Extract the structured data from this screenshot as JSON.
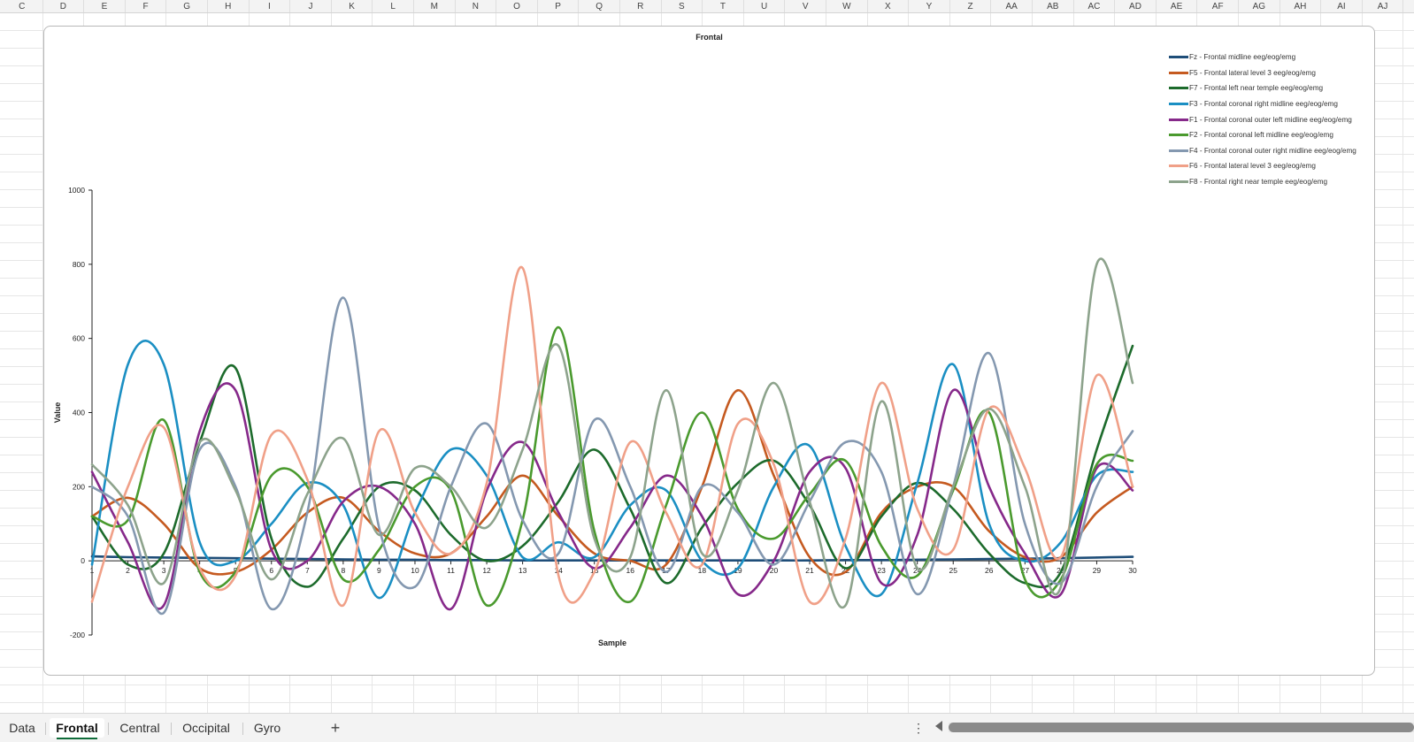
{
  "columns": [
    "C",
    "D",
    "E",
    "F",
    "G",
    "H",
    "I",
    "J",
    "K",
    "L",
    "M",
    "N",
    "O",
    "P",
    "Q",
    "R",
    "S",
    "T",
    "U",
    "V",
    "W",
    "X",
    "Y",
    "Z",
    "AA",
    "AB",
    "AC",
    "AD",
    "AE",
    "AF",
    "AG",
    "AH",
    "AI",
    "AJ"
  ],
  "sheet_tabs": [
    {
      "label": "Data",
      "active": false
    },
    {
      "label": "Frontal",
      "active": true
    },
    {
      "label": "Central",
      "active": false
    },
    {
      "label": "Occipital",
      "active": false
    },
    {
      "label": "Gyro",
      "active": false
    }
  ],
  "add_sheet_label": "+",
  "more_label": "⋮",
  "colors": {
    "sheet_tab_accent": "#0f6c3a"
  },
  "chart_data": {
    "type": "line",
    "title": "Frontal",
    "xlabel": "Sample",
    "ylabel": "Value",
    "ylim": [
      -200,
      1000
    ],
    "yticks": [
      -200,
      0,
      200,
      400,
      600,
      800,
      1000
    ],
    "x": [
      1,
      2,
      3,
      4,
      5,
      6,
      7,
      8,
      9,
      10,
      11,
      12,
      13,
      14,
      15,
      16,
      17,
      18,
      19,
      20,
      21,
      22,
      23,
      24,
      25,
      26,
      27,
      28,
      29,
      30
    ],
    "smooth": true,
    "legend_position": "top-right",
    "series": [
      {
        "name": "Fz - Frontal midline eeg/eog/emg",
        "color": "#1f4e79",
        "values": [
          12,
          10,
          9,
          8,
          7,
          6,
          5,
          4,
          3,
          3,
          2,
          2,
          1,
          1,
          1,
          1,
          1,
          1,
          1,
          1,
          1,
          2,
          2,
          3,
          4,
          5,
          6,
          7,
          9,
          11
        ]
      },
      {
        "name": "F5 - Frontal lateral level 3 eeg/eog/emg",
        "color": "#c55a20",
        "values": [
          120,
          170,
          100,
          -20,
          -30,
          30,
          130,
          170,
          80,
          20,
          20,
          120,
          230,
          120,
          20,
          0,
          -10,
          200,
          460,
          230,
          10,
          -30,
          130,
          200,
          200,
          80,
          10,
          10,
          130,
          200
        ]
      },
      {
        "name": "F7 - Frontal left near temple eeg/eog/emg",
        "color": "#1d6b2c",
        "values": [
          120,
          -10,
          20,
          320,
          520,
          60,
          -70,
          60,
          200,
          190,
          70,
          0,
          40,
          160,
          300,
          140,
          -60,
          90,
          210,
          270,
          150,
          -20,
          120,
          210,
          140,
          20,
          -60,
          -30,
          300,
          580
        ]
      },
      {
        "name": "F3 - Frontal coronal right midline eeg/eog/emg",
        "color": "#1b8fc3",
        "values": [
          -10,
          530,
          530,
          50,
          0,
          100,
          210,
          150,
          -100,
          130,
          300,
          230,
          10,
          50,
          10,
          150,
          190,
          0,
          -20,
          200,
          310,
          40,
          -90,
          210,
          530,
          100,
          0,
          50,
          230,
          240
        ]
      },
      {
        "name": "F1 - Frontal coronal outer left midline eeg/eog/emg",
        "color": "#86298a",
        "values": [
          240,
          50,
          -120,
          350,
          460,
          30,
          0,
          160,
          200,
          100,
          -130,
          190,
          320,
          130,
          -20,
          90,
          230,
          120,
          -90,
          0,
          240,
          250,
          -60,
          70,
          460,
          200,
          20,
          -90,
          250,
          190
        ]
      },
      {
        "name": "F2 - Frontal coronal left midline eeg/eog/emg",
        "color": "#4a9a2e",
        "values": [
          120,
          110,
          380,
          -30,
          -30,
          230,
          200,
          -50,
          30,
          200,
          190,
          -120,
          110,
          630,
          80,
          -110,
          150,
          400,
          140,
          60,
          180,
          270,
          40,
          -40,
          190,
          400,
          -50,
          -50,
          260,
          270
        ]
      },
      {
        "name": "F4 - Frontal coronal outer right midline eeg/eog/emg",
        "color": "#8498b0",
        "values": [
          200,
          120,
          -140,
          300,
          200,
          -130,
          130,
          710,
          90,
          -70,
          200,
          370,
          110,
          20,
          380,
          200,
          -30,
          200,
          130,
          -10,
          160,
          320,
          240,
          -90,
          200,
          560,
          100,
          -60,
          200,
          350
        ]
      },
      {
        "name": "F6 - Frontal lateral level 3 eeg/eog/emg",
        "color": "#f0a088",
        "values": [
          -110,
          200,
          360,
          -20,
          -40,
          340,
          220,
          -120,
          350,
          130,
          20,
          210,
          790,
          -40,
          -30,
          320,
          130,
          -10,
          370,
          260,
          -110,
          60,
          480,
          140,
          30,
          410,
          250,
          10,
          500,
          200
        ]
      },
      {
        "name": "F8 - Frontal right near temple eeg/eog/emg",
        "color": "#8da38c",
        "values": [
          260,
          150,
          -60,
          320,
          190,
          -50,
          180,
          330,
          70,
          250,
          200,
          90,
          300,
          580,
          60,
          10,
          460,
          20,
          190,
          480,
          160,
          -120,
          430,
          -20,
          200,
          410,
          200,
          -70,
          800,
          480
        ]
      }
    ]
  }
}
